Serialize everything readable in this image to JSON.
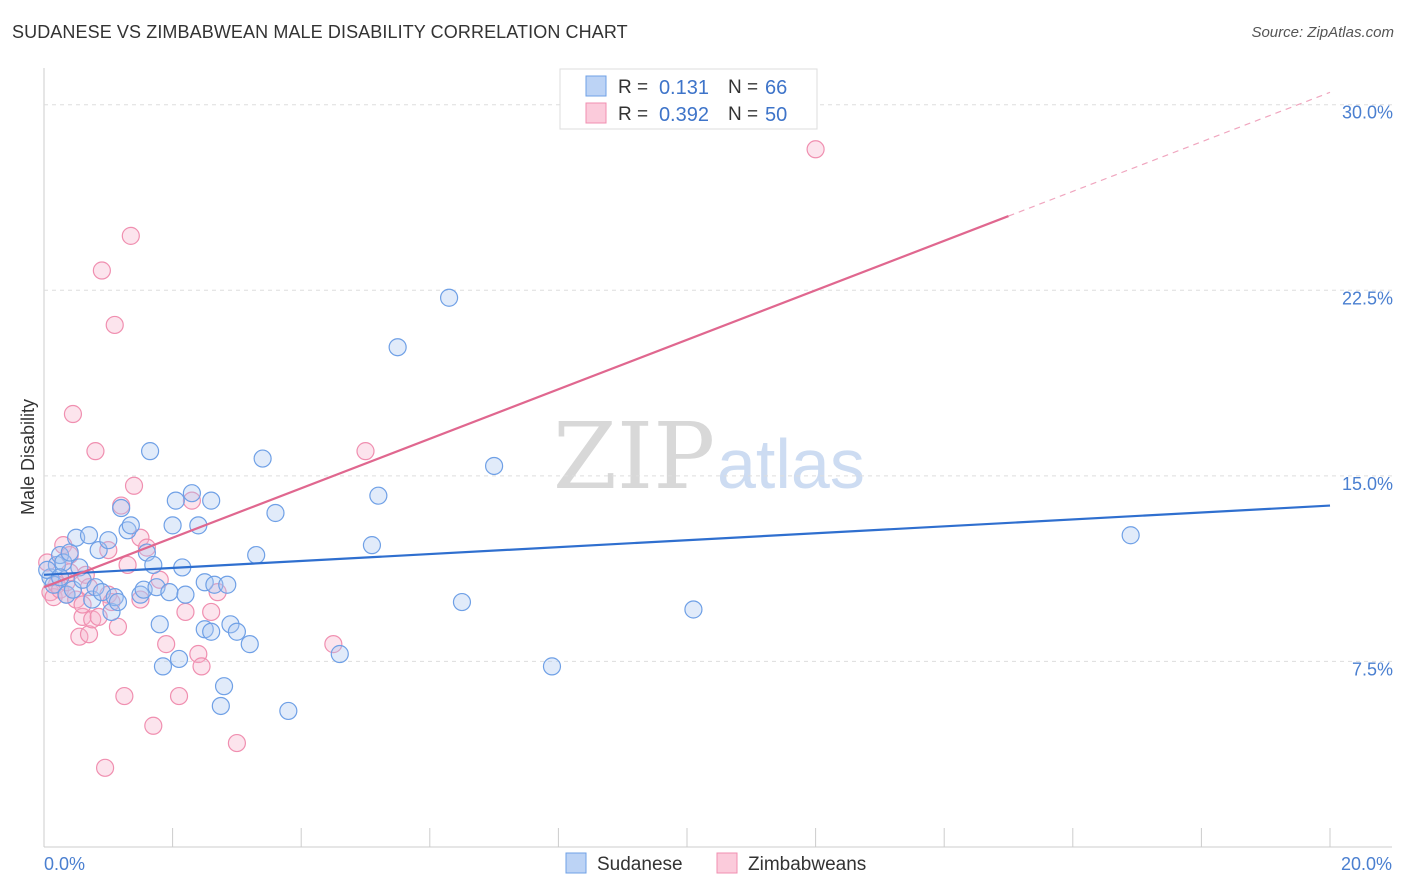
{
  "title": "SUDANESE VS ZIMBABWEAN MALE DISABILITY CORRELATION CHART",
  "source": "Source: ZipAtlas.com",
  "watermark": {
    "zip": "ZIP",
    "atlas": "atlas"
  },
  "legend": {
    "rows": [
      {
        "r_label": "R =",
        "r_value": "0.131",
        "n_label": "N =",
        "n_value": "66"
      },
      {
        "r_label": "R =",
        "r_value": "0.392",
        "n_label": "N =",
        "n_value": "50"
      }
    ]
  },
  "chart_data": {
    "type": "scatter",
    "title": "SUDANESE VS ZIMBABWEAN MALE DISABILITY CORRELATION CHART",
    "xlabel": "",
    "ylabel": "Male Disability",
    "xlim": [
      0,
      20
    ],
    "ylim": [
      0,
      31
    ],
    "x_tick_labels": [
      "0.0%",
      "20.0%"
    ],
    "y_ticks": [
      7.5,
      15.0,
      22.5,
      30.0
    ],
    "y_tick_labels": [
      "7.5%",
      "15.0%",
      "22.5%",
      "30.0%"
    ],
    "colors": {
      "sudanese": "#6fa0e6",
      "zimbabweans": "#f08fb0",
      "sudanese_line": "#2f6fcf",
      "zimbabweans_line": "#e0678f"
    },
    "series": [
      {
        "name": "Sudanese",
        "R": 0.131,
        "N": 66,
        "trend": {
          "x": [
            0,
            20
          ],
          "y": [
            11.0,
            13.8
          ]
        },
        "points": [
          [
            0.1,
            10.9
          ],
          [
            0.15,
            10.6
          ],
          [
            0.2,
            11.4
          ],
          [
            0.25,
            11.8
          ],
          [
            0.3,
            11.5
          ],
          [
            0.35,
            10.2
          ],
          [
            0.4,
            11.9
          ],
          [
            0.45,
            10.4
          ],
          [
            0.5,
            12.5
          ],
          [
            0.55,
            11.3
          ],
          [
            0.6,
            10.8
          ],
          [
            0.7,
            12.6
          ],
          [
            0.75,
            10.0
          ],
          [
            0.8,
            10.5
          ],
          [
            0.85,
            12.0
          ],
          [
            0.9,
            10.3
          ],
          [
            1.0,
            12.4
          ],
          [
            1.05,
            9.5
          ],
          [
            1.1,
            10.1
          ],
          [
            1.15,
            9.9
          ],
          [
            1.2,
            13.7
          ],
          [
            1.3,
            12.8
          ],
          [
            1.35,
            13.0
          ],
          [
            1.5,
            10.2
          ],
          [
            1.55,
            10.4
          ],
          [
            1.6,
            11.9
          ],
          [
            1.65,
            16.0
          ],
          [
            1.7,
            11.4
          ],
          [
            1.75,
            10.5
          ],
          [
            1.8,
            9.0
          ],
          [
            1.85,
            7.3
          ],
          [
            1.95,
            10.3
          ],
          [
            2.0,
            13.0
          ],
          [
            2.05,
            14.0
          ],
          [
            2.1,
            7.6
          ],
          [
            2.15,
            11.3
          ],
          [
            2.2,
            10.2
          ],
          [
            2.3,
            14.3
          ],
          [
            2.4,
            13.0
          ],
          [
            2.5,
            8.8
          ],
          [
            2.5,
            10.7
          ],
          [
            2.6,
            14.0
          ],
          [
            2.6,
            8.7
          ],
          [
            2.65,
            10.6
          ],
          [
            2.75,
            5.7
          ],
          [
            2.8,
            6.5
          ],
          [
            2.85,
            10.6
          ],
          [
            2.9,
            9.0
          ],
          [
            3.0,
            8.7
          ],
          [
            3.2,
            8.2
          ],
          [
            3.3,
            11.8
          ],
          [
            3.4,
            15.7
          ],
          [
            3.6,
            13.5
          ],
          [
            3.8,
            5.5
          ],
          [
            4.6,
            7.8
          ],
          [
            5.1,
            12.2
          ],
          [
            5.2,
            14.2
          ],
          [
            5.5,
            20.2
          ],
          [
            6.3,
            22.2
          ],
          [
            6.5,
            9.9
          ],
          [
            7.0,
            15.4
          ],
          [
            7.9,
            7.3
          ],
          [
            10.1,
            9.6
          ],
          [
            16.9,
            12.6
          ],
          [
            0.05,
            11.2
          ],
          [
            0.25,
            10.9
          ]
        ]
      },
      {
        "name": "Zimbabweans",
        "R": 0.392,
        "N": 50,
        "trend": {
          "x": [
            0,
            15
          ],
          "y": [
            10.5,
            25.5
          ]
        },
        "trend_dashed": {
          "x": [
            15,
            20
          ],
          "y": [
            25.5,
            30.5
          ]
        },
        "points": [
          [
            0.05,
            11.5
          ],
          [
            0.1,
            10.3
          ],
          [
            0.15,
            10.1
          ],
          [
            0.2,
            10.6
          ],
          [
            0.25,
            10.4
          ],
          [
            0.3,
            12.2
          ],
          [
            0.35,
            10.2
          ],
          [
            0.4,
            11.8
          ],
          [
            0.45,
            17.5
          ],
          [
            0.5,
            10.0
          ],
          [
            0.55,
            8.5
          ],
          [
            0.6,
            9.3
          ],
          [
            0.65,
            11.0
          ],
          [
            0.7,
            8.6
          ],
          [
            0.75,
            9.2
          ],
          [
            0.8,
            16.0
          ],
          [
            0.85,
            9.3
          ],
          [
            0.9,
            23.3
          ],
          [
            0.95,
            3.2
          ],
          [
            1.0,
            10.2
          ],
          [
            1.05,
            9.9
          ],
          [
            1.1,
            21.1
          ],
          [
            1.15,
            8.9
          ],
          [
            1.2,
            13.8
          ],
          [
            1.25,
            6.1
          ],
          [
            1.3,
            11.4
          ],
          [
            1.35,
            24.7
          ],
          [
            1.4,
            14.6
          ],
          [
            1.5,
            12.5
          ],
          [
            1.6,
            12.1
          ],
          [
            1.7,
            4.9
          ],
          [
            1.8,
            10.8
          ],
          [
            1.9,
            8.2
          ],
          [
            2.1,
            6.1
          ],
          [
            2.2,
            9.5
          ],
          [
            2.3,
            14.0
          ],
          [
            2.4,
            7.8
          ],
          [
            2.45,
            7.3
          ],
          [
            2.6,
            9.5
          ],
          [
            2.7,
            10.3
          ],
          [
            3.0,
            4.2
          ],
          [
            4.5,
            8.2
          ],
          [
            5.0,
            16.0
          ],
          [
            12.0,
            28.2
          ],
          [
            0.35,
            10.7
          ],
          [
            0.6,
            9.8
          ],
          [
            1.0,
            12.0
          ],
          [
            0.4,
            11.1
          ],
          [
            0.7,
            10.5
          ],
          [
            1.5,
            10.0
          ]
        ]
      }
    ]
  },
  "bottom_legend": [
    {
      "label": "Sudanese"
    },
    {
      "label": "Zimbabweans"
    }
  ]
}
